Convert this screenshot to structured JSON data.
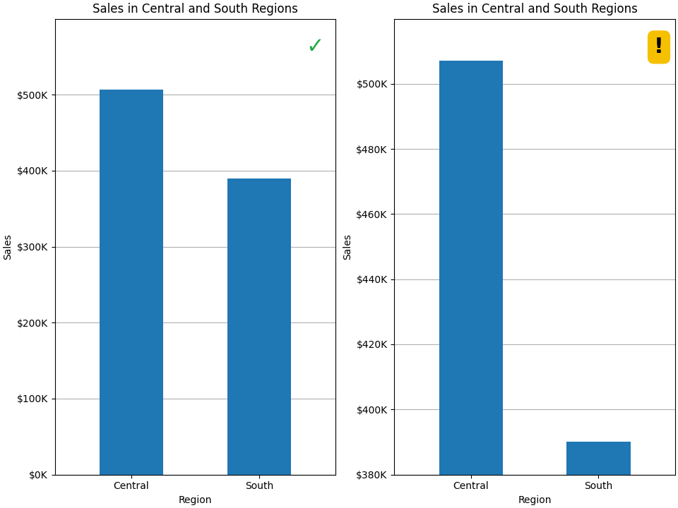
{
  "chart_data": [
    {
      "type": "bar",
      "title": "Sales in Central and South Regions",
      "xlabel": "Region",
      "ylabel": "Sales",
      "categories": [
        "Central",
        "South"
      ],
      "values": [
        507000,
        390000
      ],
      "ylim": [
        0,
        600000
      ],
      "yticks": [
        {
          "value": 0,
          "label": "$0K"
        },
        {
          "value": 100000,
          "label": "$100K"
        },
        {
          "value": 200000,
          "label": "$200K"
        },
        {
          "value": 300000,
          "label": "$300K"
        },
        {
          "value": 400000,
          "label": "$400K"
        },
        {
          "value": 500000,
          "label": "$500K"
        }
      ],
      "grid": true,
      "annotations": [
        {
          "text": "✓",
          "color": "#22aa44"
        }
      ]
    },
    {
      "type": "bar",
      "title": "Sales in Central and South Regions",
      "xlabel": "Region",
      "ylabel": "Sales",
      "categories": [
        "Central",
        "South"
      ],
      "values": [
        507000,
        390000
      ],
      "ylim": [
        380000,
        520000
      ],
      "yticks": [
        {
          "value": 380000,
          "label": "$380K"
        },
        {
          "value": 400000,
          "label": "$400K"
        },
        {
          "value": 420000,
          "label": "$420K"
        },
        {
          "value": 440000,
          "label": "$440K"
        },
        {
          "value": 460000,
          "label": "$460K"
        },
        {
          "value": 480000,
          "label": "$480K"
        },
        {
          "value": 500000,
          "label": "$500K"
        }
      ],
      "grid": true,
      "annotations": [
        {
          "text": "!",
          "background": "#f5c000"
        }
      ]
    }
  ]
}
